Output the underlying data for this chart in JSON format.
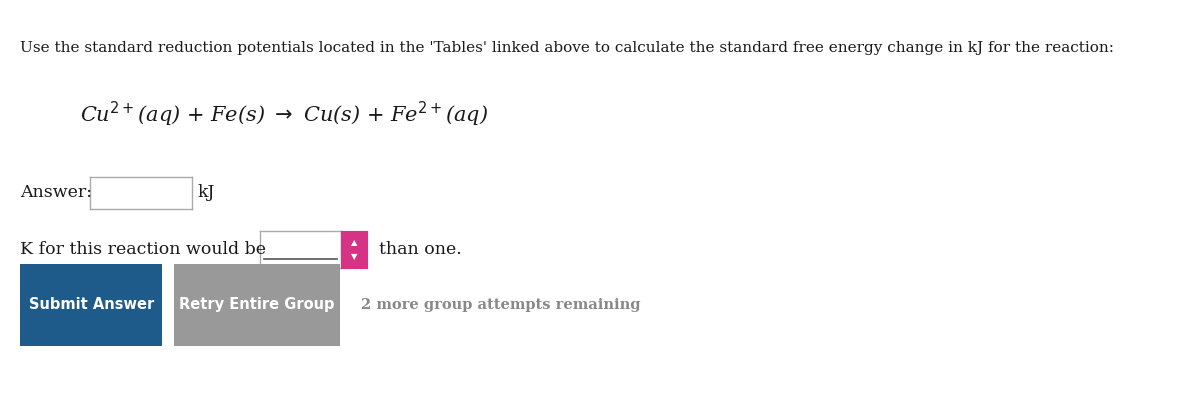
{
  "background_color": "#ffffff",
  "instruction_text": "Use the standard reduction potentials located in the 'Tables' linked above to calculate the standard free energy change in kJ for the reaction:",
  "answer_label": "Answer:",
  "kj_label": "kJ",
  "k_text": "K for this reaction would be",
  "than_one_text": "than one.",
  "dropdown_arrow_color": "#d63384",
  "submit_btn_color": "#1e5b8a",
  "retry_btn_color": "#999999",
  "btn_text_color": "#ffffff",
  "submit_btn_text": "Submit Answer",
  "retry_btn_text": "Retry Entire Group",
  "remaining_text": "2 more group attempts remaining",
  "remaining_color": "#888888",
  "text_color": "#1a1a1a",
  "instruction_fontsize": 11.0,
  "equation_fontsize": 15.0,
  "label_fontsize": 12.5,
  "btn_fontsize": 10.5
}
